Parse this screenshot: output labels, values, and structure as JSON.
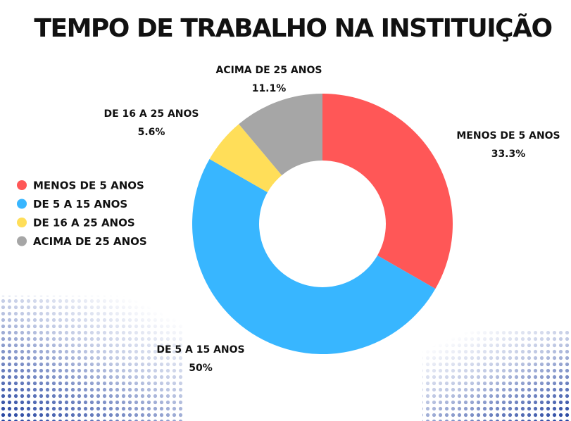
{
  "chart_data": {
    "type": "donut",
    "title": "TEMPO DE TRABALHO NA INSTITUIÇÃO",
    "categories": [
      "MENOS DE 5 ANOS",
      "DE 5 A 15 ANOS",
      "DE 16 A 25 ANOS",
      "ACIMA DE 25 ANOS"
    ],
    "values": [
      33.3,
      50,
      5.6,
      11.1
    ],
    "value_labels": [
      "33.3%",
      "50%",
      "5.6%",
      "11.1%"
    ],
    "colors": [
      "#ff5757",
      "#38b6ff",
      "#ffde59",
      "#a6a6a6"
    ]
  }
}
